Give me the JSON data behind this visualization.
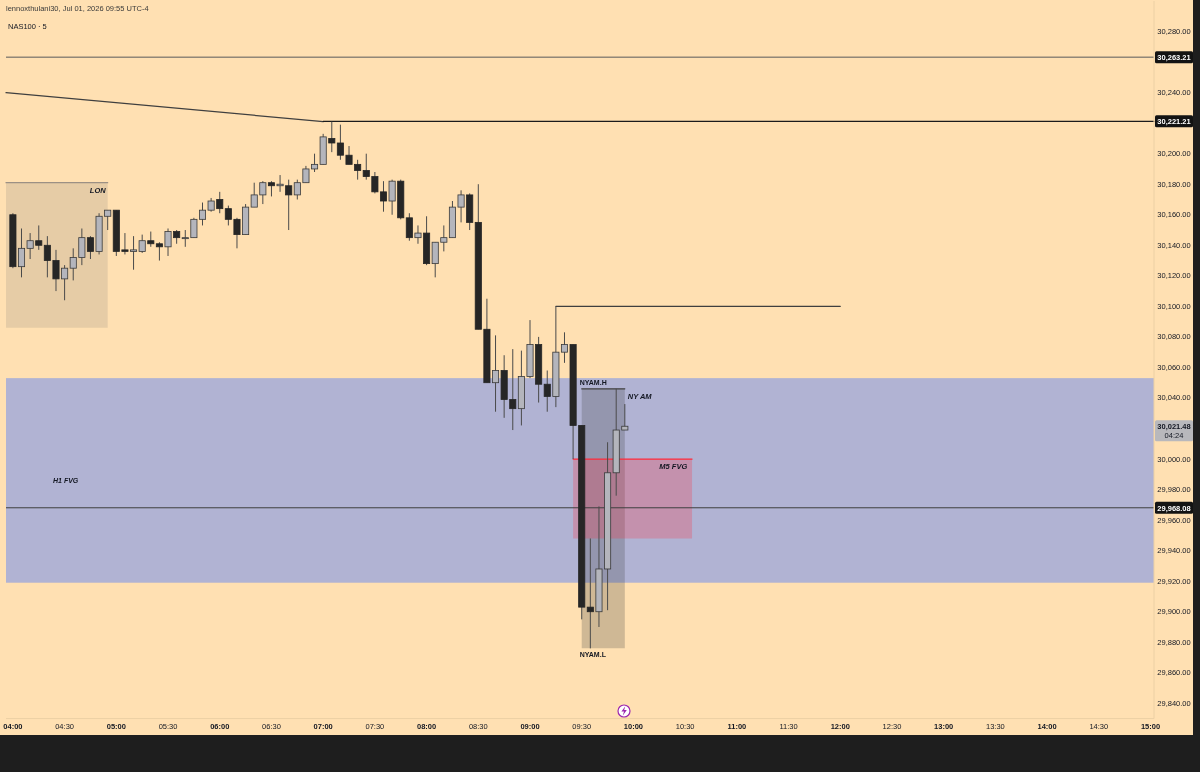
{
  "chart_data": {
    "type": "candlestick",
    "title": "NAS100 · 5",
    "subtitle": "lennoxthulani30, Jul 01, 2026 09:55 UTC-4",
    "x": [
      "2026-07-01T04:00",
      "2026-07-01T04:05",
      "2026-07-01T04:10",
      "2026-07-01T04:15",
      "2026-07-01T04:20",
      "2026-07-01T04:25",
      "2026-07-01T04:30",
      "2026-07-01T04:35",
      "2026-07-01T04:40",
      "2026-07-01T04:45",
      "2026-07-01T04:50",
      "2026-07-01T04:55",
      "2026-07-01T05:00",
      "2026-07-01T05:05",
      "2026-07-01T05:10",
      "2026-07-01T05:15",
      "2026-07-01T05:20",
      "2026-07-01T05:25",
      "2026-07-01T05:30",
      "2026-07-01T05:35",
      "2026-07-01T05:40",
      "2026-07-01T05:45",
      "2026-07-01T05:50",
      "2026-07-01T05:55",
      "2026-07-01T06:00",
      "2026-07-01T06:05",
      "2026-07-01T06:10",
      "2026-07-01T06:15",
      "2026-07-01T06:20",
      "2026-07-01T06:25",
      "2026-07-01T06:30",
      "2026-07-01T06:35",
      "2026-07-01T06:40",
      "2026-07-01T06:45",
      "2026-07-01T06:50",
      "2026-07-01T06:55",
      "2026-07-01T07:00",
      "2026-07-01T07:05",
      "2026-07-01T07:10",
      "2026-07-01T07:15",
      "2026-07-01T07:20",
      "2026-07-01T07:25",
      "2026-07-01T07:30",
      "2026-07-01T07:35",
      "2026-07-01T07:40",
      "2026-07-01T07:45",
      "2026-07-01T07:50",
      "2026-07-01T07:55",
      "2026-07-01T08:00",
      "2026-07-01T08:05",
      "2026-07-01T08:10",
      "2026-07-01T08:15",
      "2026-07-01T08:20",
      "2026-07-01T08:25",
      "2026-07-01T08:30",
      "2026-07-01T08:35",
      "2026-07-01T08:40",
      "2026-07-01T08:45",
      "2026-07-01T08:50",
      "2026-07-01T08:55",
      "2026-07-01T09:00",
      "2026-07-01T09:05",
      "2026-07-01T09:10",
      "2026-07-01T09:15",
      "2026-07-01T09:20",
      "2026-07-01T09:25",
      "2026-07-01T09:30",
      "2026-07-01T09:35",
      "2026-07-01T09:40",
      "2026-07-01T09:45",
      "2026-07-01T09:50",
      "2026-07-01T09:55"
    ],
    "ohlc": [
      [
        30160,
        30161,
        30125,
        30126
      ],
      [
        30126,
        30151,
        30119,
        30138
      ],
      [
        30138,
        30148,
        30131,
        30143
      ],
      [
        30143,
        30153,
        30137,
        30140
      ],
      [
        30140,
        30146,
        30119,
        30130
      ],
      [
        30130,
        30137,
        30110,
        30118
      ],
      [
        30118,
        30127,
        30104,
        30125
      ],
      [
        30125,
        30138,
        30117,
        30132
      ],
      [
        30132,
        30151,
        30127,
        30145
      ],
      [
        30145,
        30146,
        30131,
        30136
      ],
      [
        30136,
        30161,
        30134,
        30159
      ],
      [
        30159,
        30163,
        30150,
        30163
      ],
      [
        30163,
        30163,
        30133,
        30136
      ],
      [
        30137,
        30148,
        30134,
        30136
      ],
      [
        30136,
        30146,
        30124,
        30137
      ],
      [
        30136,
        30147,
        30135,
        30143
      ],
      [
        30143,
        30149,
        30139,
        30141
      ],
      [
        30141,
        30142,
        30130,
        30139
      ],
      [
        30139,
        30151,
        30133,
        30149
      ],
      [
        30149,
        30150,
        30141,
        30145
      ],
      [
        30145,
        30150,
        30139,
        30145
      ],
      [
        30145,
        30158,
        30145,
        30157
      ],
      [
        30157,
        30168,
        30153,
        30163
      ],
      [
        30163,
        30171,
        30162,
        30169
      ],
      [
        30170,
        30175,
        30161,
        30164
      ],
      [
        30164,
        30166,
        30153,
        30157
      ],
      [
        30157,
        30158,
        30138,
        30147
      ],
      [
        30147,
        30167,
        30147,
        30165
      ],
      [
        30165,
        30181,
        30165,
        30173
      ],
      [
        30173,
        30182,
        30167,
        30181
      ],
      [
        30181,
        30182,
        30172,
        30179
      ],
      [
        30179,
        30186,
        30175,
        30180
      ],
      [
        30179,
        30183,
        30150,
        30173
      ],
      [
        30173,
        30183,
        30170,
        30181
      ],
      [
        30181,
        30192,
        30181,
        30190
      ],
      [
        30190,
        30200,
        30188,
        30193
      ],
      [
        30193,
        30213,
        30193,
        30211
      ],
      [
        30210,
        30221,
        30201,
        30207
      ],
      [
        30207,
        30219,
        30196,
        30199
      ],
      [
        30199,
        30205,
        30193,
        30193
      ],
      [
        30193,
        30196,
        30183,
        30189
      ],
      [
        30189,
        30200,
        30183,
        30185
      ],
      [
        30185,
        30188,
        30174,
        30175
      ],
      [
        30175,
        30182,
        30162,
        30169
      ],
      [
        30169,
        30183,
        30160,
        30182
      ],
      [
        30182,
        30183,
        30157,
        30158
      ],
      [
        30158,
        30161,
        30143,
        30145
      ],
      [
        30145,
        30153,
        30141,
        30148
      ],
      [
        30148,
        30159,
        30127,
        30128
      ],
      [
        30128,
        30142,
        30119,
        30142
      ],
      [
        30142,
        30153,
        30136,
        30145
      ],
      [
        30145,
        30169,
        30145,
        30165
      ],
      [
        30165,
        30176,
        30155,
        30173
      ],
      [
        30173,
        30174,
        30150,
        30155
      ],
      [
        30155,
        30180,
        30085,
        30085
      ],
      [
        30085,
        30105,
        30050,
        30050
      ],
      [
        30050,
        30081,
        30031,
        30058
      ],
      [
        30058,
        30068,
        30027,
        30039
      ],
      [
        30039,
        30072,
        30019,
        30033
      ],
      [
        30033,
        30071,
        30022,
        30054
      ],
      [
        30054,
        30091,
        30053,
        30075
      ],
      [
        30075,
        30080,
        30037,
        30049
      ],
      [
        30049,
        30058,
        30031,
        30041
      ],
      [
        30041,
        30100,
        30034,
        30070
      ],
      [
        30070,
        30083,
        30063,
        30075
      ],
      [
        30075,
        30075,
        30000,
        30022
      ],
      [
        30022,
        30022,
        29895,
        29903
      ],
      [
        29903,
        29948,
        29876,
        29900
      ],
      [
        29900,
        29969,
        29890,
        29928
      ],
      [
        29928,
        30011,
        29901,
        29991
      ],
      [
        29991,
        30046,
        29976,
        30019
      ],
      [
        30019,
        30036,
        30019,
        30021.48
      ]
    ],
    "series": [
      {
        "type": "line",
        "name": "LON",
        "x": [
          "2026-07-01T03:56",
          "2026-07-01T04:55"
        ],
        "values": [
          30181,
          30181
        ],
        "lower": [
          30086,
          30086
        ],
        "upper": [
          30181,
          30181
        ],
        "color": "#9c9084"
      },
      {
        "type": "line",
        "name": "NY AM",
        "x": [
          "2026-07-01T09:30",
          "2026-07-01T09:55"
        ],
        "values": [
          30046,
          30046
        ],
        "lower": [
          29876,
          29876
        ],
        "upper": [
          30046,
          30046
        ],
        "color": "#404040"
      },
      {
        "type": "line",
        "name": "M5 FVG",
        "x": [
          "2026-07-01T09:25",
          "2026-07-01T10:34"
        ],
        "values": [
          30000,
          30000
        ],
        "lower": [
          29948,
          29948
        ],
        "upper": [
          30000,
          30000
        ],
        "color": "#ff2a3a"
      },
      {
        "type": "line",
        "x": [
          "2026-07-01T03:56",
          "2026-07-01T07:00"
        ],
        "values": [
          30240,
          30221
        ],
        "color": "#3f3f3f"
      },
      {
        "type": "line",
        "x": [
          "2026-07-01T07:00",
          "2026-07-01T15:02"
        ],
        "values": [
          30221.21,
          30221.21
        ],
        "color": "#1b1b1b",
        "value_labels": [
          null,
          "30,221.21"
        ]
      },
      {
        "type": "line",
        "x": [
          "2026-07-01T09:15",
          "2026-07-01T12:00"
        ],
        "values": [
          30100,
          30100
        ],
        "color": "#3f3f3f"
      }
    ],
    "bands": [
      {
        "axis": "y",
        "from": 29919,
        "to": 30053,
        "label": "H1 FVG",
        "color": "#b1b3d3"
      }
    ],
    "ref_lines": [
      {
        "axis": "y",
        "value": 30263.21,
        "label": "30,263.21",
        "color": "#5a5a5a"
      },
      {
        "axis": "y",
        "value": 29968.08,
        "label": "29,968.08",
        "color": "#3f3f3f"
      }
    ],
    "annotations": [
      {
        "text": "NYAM.H",
        "x": "2026-07-01T09:30",
        "y": 30046
      },
      {
        "text": "NYAM.L",
        "x": "2026-07-01T09:30",
        "y": 29876
      },
      "30,021.48",
      "04:24"
    ],
    "xlim": [
      "2026-07-01T03:56",
      "2026-07-01T15:02"
    ],
    "xticks": [
      {
        "value": "2026-07-01T04:00",
        "label": "04:00"
      },
      {
        "value": "2026-07-01T04:30",
        "label": "04:30"
      },
      {
        "value": "2026-07-01T05:00",
        "label": "05:00"
      },
      {
        "value": "2026-07-01T05:30",
        "label": "05:30"
      },
      {
        "value": "2026-07-01T06:00",
        "label": "06:00"
      },
      {
        "value": "2026-07-01T06:30",
        "label": "06:30"
      },
      {
        "value": "2026-07-01T07:00",
        "label": "07:00"
      },
      {
        "value": "2026-07-01T07:30",
        "label": "07:30"
      },
      {
        "value": "2026-07-01T08:00",
        "label": "08:00"
      },
      {
        "value": "2026-07-01T08:30",
        "label": "08:30"
      },
      {
        "value": "2026-07-01T09:00",
        "label": "09:00"
      },
      {
        "value": "2026-07-01T09:30",
        "label": "09:30"
      },
      {
        "value": "2026-07-01T10:00",
        "label": "10:00"
      },
      {
        "value": "2026-07-01T10:30",
        "label": "10:30"
      },
      {
        "value": "2026-07-01T11:00",
        "label": "11:00"
      },
      {
        "value": "2026-07-01T11:30",
        "label": "11:30"
      },
      {
        "value": "2026-07-01T12:00",
        "label": "12:00"
      },
      {
        "value": "2026-07-01T12:30",
        "label": "12:30"
      },
      {
        "value": "2026-07-01T13:00",
        "label": "13:00"
      },
      {
        "value": "2026-07-01T13:30",
        "label": "13:30"
      },
      {
        "value": "2026-07-01T14:00",
        "label": "14:00"
      },
      {
        "value": "2026-07-01T14:30",
        "label": "14:30"
      },
      {
        "value": "2026-07-01T15:00",
        "label": "15:00"
      }
    ],
    "ylim": [
      29830,
      30300
    ],
    "yticks": [
      {
        "value": 29840,
        "label": "29,840.00"
      },
      {
        "value": 29860,
        "label": "29,860.00"
      },
      {
        "value": 29880,
        "label": "29,880.00"
      },
      {
        "value": 29900,
        "label": "29,900.00"
      },
      {
        "value": 29920,
        "label": "29,920.00"
      },
      {
        "value": 29940,
        "label": "29,940.00"
      },
      {
        "value": 29960,
        "label": "29,960.00"
      },
      {
        "value": 29980,
        "label": "29,980.00"
      },
      {
        "value": 30000,
        "label": "30,000.00"
      },
      {
        "value": 30040,
        "label": "30,040.00"
      },
      {
        "value": 30060,
        "label": "30,060.00"
      },
      {
        "value": 30080,
        "label": "30,080.00"
      },
      {
        "value": 30100,
        "label": "30,100.00"
      },
      {
        "value": 30120,
        "label": "30,120.00"
      },
      {
        "value": 30140,
        "label": "30,140.00"
      },
      {
        "value": 30160,
        "label": "30,160.00"
      },
      {
        "value": 30180,
        "label": "30,180.00"
      },
      {
        "value": 30200,
        "label": "30,200.00"
      },
      {
        "value": 30240,
        "label": "30,240.00"
      },
      {
        "value": 30280,
        "label": "30,280.00"
      }
    ]
  }
}
